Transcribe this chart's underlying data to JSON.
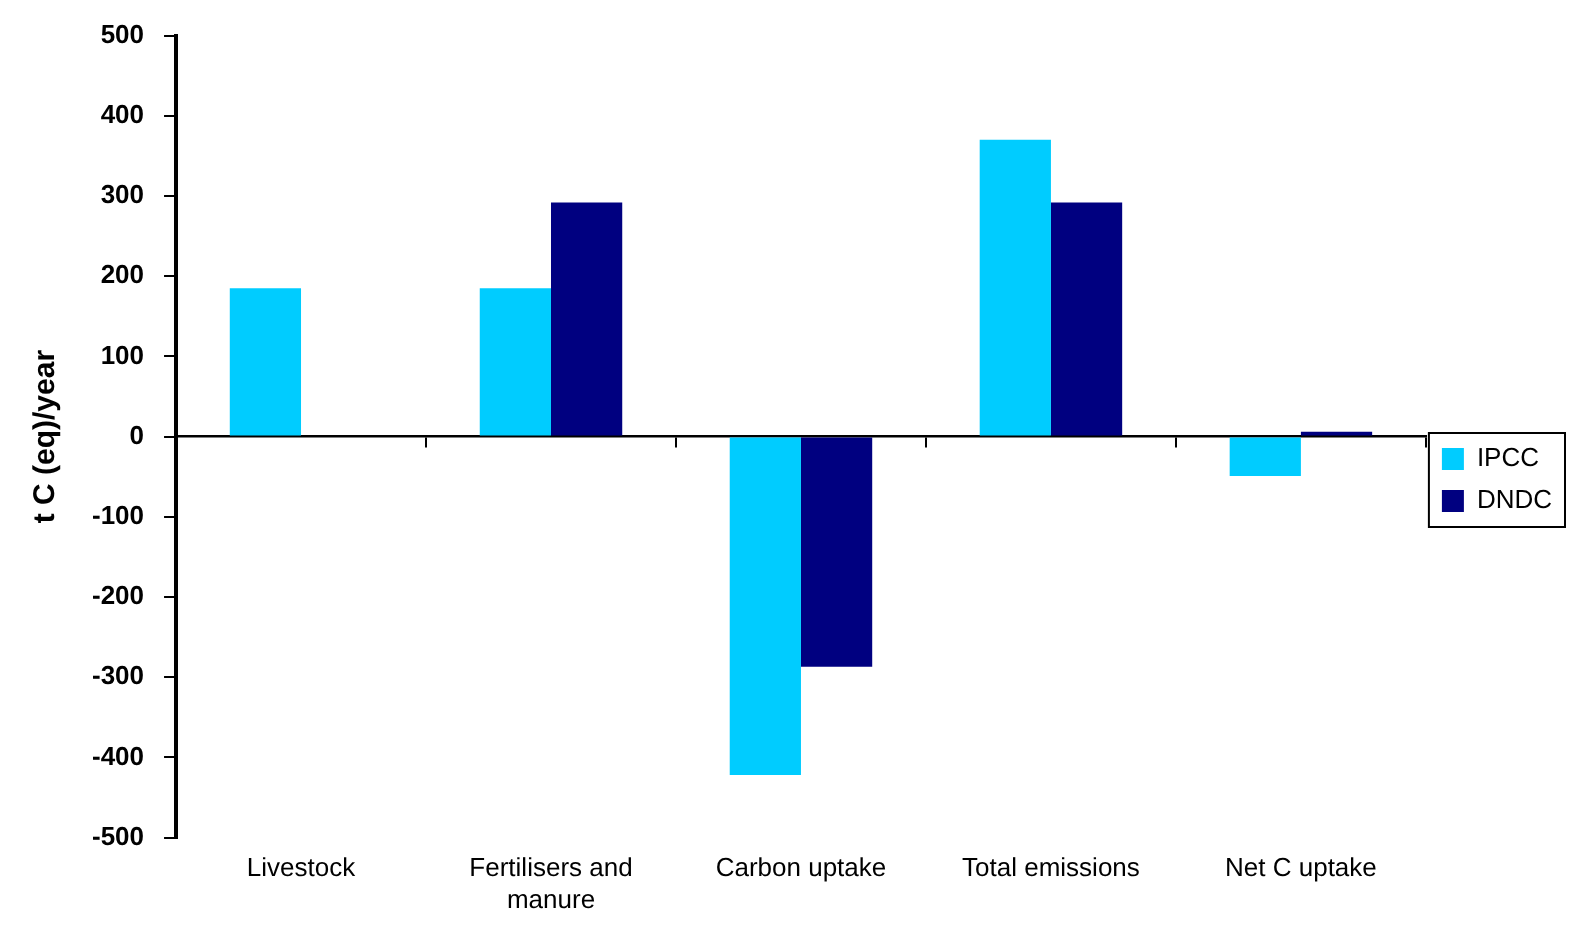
{
  "chart_data": {
    "type": "bar",
    "ylabel": "t C (eq)/year",
    "categories": [
      "Livestock",
      "Fertilisers and manure",
      "Carbon uptake",
      "Total emissions",
      "Net C uptake"
    ],
    "series": [
      {
        "name": "IPCC",
        "color": "#00ccff",
        "values": [
          185,
          185,
          -422,
          370,
          -49
        ]
      },
      {
        "name": "DNDC",
        "color": "#000080",
        "values": [
          0,
          292,
          -287,
          292,
          6
        ]
      }
    ],
    "ylim": [
      -500,
      500
    ],
    "yticks": [
      -500,
      -400,
      -300,
      -200,
      -100,
      0,
      100,
      200,
      300,
      400,
      500
    ],
    "legend": "right"
  }
}
